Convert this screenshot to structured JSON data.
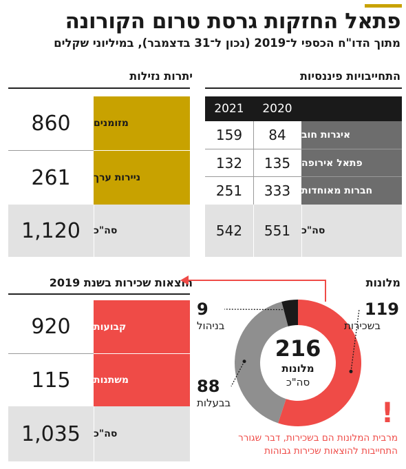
{
  "header": {
    "title": "פתאל החזקות גרסת טרום הקורונה",
    "subtitle": "מתוך הדו\"ח הכספי ל־2019 (נכון ל־31 בדצמבר), במיליוני שקלים",
    "accent_color": "#c8a200"
  },
  "liquidity": {
    "title": "יתרות נזילות",
    "color": "#c8a200",
    "rows": [
      {
        "label": "מזומנים",
        "value": "860"
      },
      {
        "label": "ניירות ערך",
        "value": "261"
      }
    ],
    "total_label": "סה\"כ",
    "total_value": "1,120"
  },
  "obligations": {
    "title": "התחייבויות פיננסיות",
    "columns": [
      "2020",
      "2021"
    ],
    "rows": [
      {
        "label": "איגרות חוב",
        "v2020": "84",
        "v2021": "159"
      },
      {
        "label": "פתאל אירופה",
        "v2020": "135",
        "v2021": "132"
      },
      {
        "label": "חברות מאוחדות",
        "v2020": "333",
        "v2021": "251"
      }
    ],
    "total_label": "סה\"כ",
    "total_2020": "551",
    "total_2021": "542"
  },
  "expenses": {
    "title": "הוצאות שכירות בשנת 2019",
    "color": "#ef4b47",
    "rows": [
      {
        "label": "קבועות",
        "value": "920"
      },
      {
        "label": "משתנות",
        "value": "115"
      }
    ],
    "total_label": "סה\"כ",
    "total_value": "1,035"
  },
  "donut": {
    "section_title": "מלונות",
    "center_number": "216",
    "center_label": "מלונות",
    "center_sub": "סה\"כ",
    "segments": [
      {
        "value": 119,
        "value_label": "119",
        "label": "בשכירות",
        "color": "#ef4b47"
      },
      {
        "value": 88,
        "value_label": "88",
        "label": "בבעלות",
        "color": "#8f8f8f"
      },
      {
        "value": 9,
        "value_label": "9",
        "label": "בניהול",
        "color": "#1a1a1a"
      }
    ],
    "note_mark": "!",
    "note": "מרבית המלונות הם בשכירות, דבר שגורר התחייבות להוצאות שכירות גבוהות",
    "note_color": "#ef4b47"
  }
}
